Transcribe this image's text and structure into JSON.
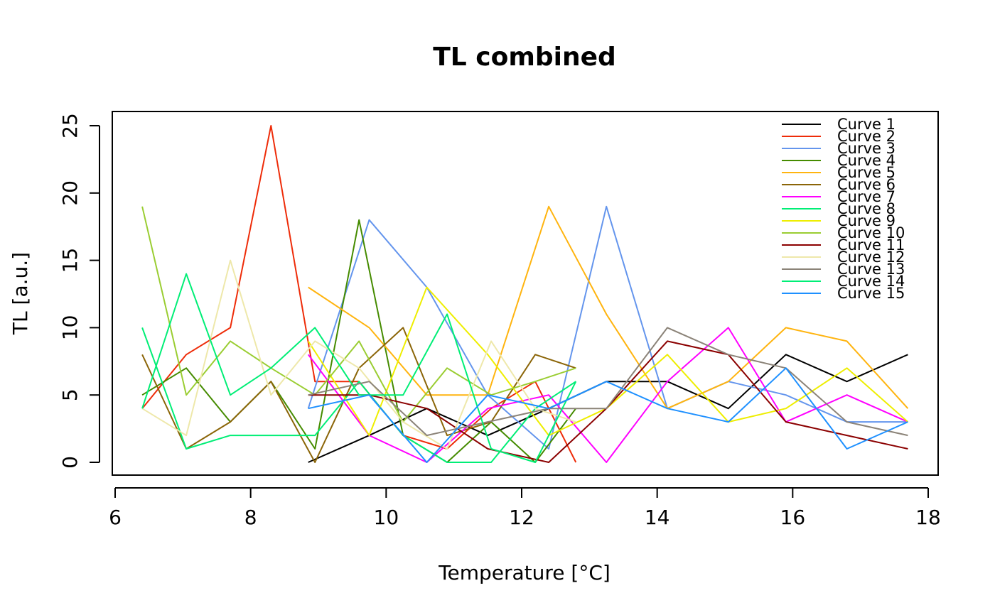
{
  "chart_data": {
    "type": "line",
    "title": "TL combined",
    "xlabel": "Temperature [°C]",
    "ylabel": "TL [a.u.]",
    "xlim": [
      6,
      18
    ],
    "ylim": [
      0,
      25
    ],
    "x_ticks": [
      6,
      8,
      10,
      12,
      14,
      16,
      18
    ],
    "y_ticks": [
      0,
      5,
      10,
      15,
      20,
      25
    ],
    "grid": false,
    "legend_position": "top-right",
    "series": [
      {
        "name": "Curve 1",
        "color": "#000000",
        "x": [
          8.85,
          9.75,
          10.6,
          11.5,
          12.4,
          13.25,
          14.15,
          15.05,
          15.9,
          16.8,
          17.7
        ],
        "y": [
          0,
          2,
          4,
          2,
          4,
          6,
          6,
          4,
          8,
          6,
          8
        ]
      },
      {
        "name": "Curve 2",
        "color": "#EE2C09",
        "x": [
          6.4,
          7.05,
          7.7,
          8.3,
          8.95,
          9.6,
          10.25,
          10.9,
          11.55,
          12.2,
          12.8
        ],
        "y": [
          4,
          8,
          10,
          25,
          6,
          6,
          2,
          1,
          4,
          6,
          0
        ]
      },
      {
        "name": "Curve 3",
        "color": "#6495ED",
        "x": [
          8.85,
          9.75,
          10.6,
          11.5,
          12.4,
          13.25,
          14.15,
          15.05,
          15.9,
          16.8,
          17.7
        ],
        "y": [
          4,
          18,
          13,
          5,
          1,
          19,
          4,
          6,
          5,
          3,
          3
        ]
      },
      {
        "name": "Curve 4",
        "color": "#458B00",
        "x": [
          6.4,
          7.05,
          7.7,
          8.3,
          8.95,
          9.6,
          10.25,
          10.9,
          11.55,
          12.2,
          12.8
        ],
        "y": [
          5,
          7,
          3,
          6,
          1,
          18,
          2,
          0,
          3,
          0,
          4
        ]
      },
      {
        "name": "Curve 5",
        "color": "#FFB40F",
        "x": [
          8.85,
          9.75,
          10.6,
          11.5,
          12.4,
          13.25,
          14.15,
          15.05,
          15.9,
          16.8,
          17.7
        ],
        "y": [
          13,
          10,
          5,
          5,
          19,
          11,
          4,
          6,
          10,
          9,
          4
        ]
      },
      {
        "name": "Curve 6",
        "color": "#8B6508",
        "x": [
          6.4,
          7.05,
          7.7,
          8.3,
          8.95,
          9.6,
          10.25,
          10.9,
          11.55,
          12.2,
          12.8
        ],
        "y": [
          8,
          1,
          3,
          6,
          0,
          7,
          10,
          2,
          3,
          8,
          7
        ]
      },
      {
        "name": "Curve 7",
        "color": "#FF00FF",
        "x": [
          8.85,
          9.75,
          10.6,
          11.5,
          12.4,
          13.25,
          14.15,
          15.05,
          15.9,
          16.8,
          17.7
        ],
        "y": [
          8,
          2,
          0,
          4,
          5,
          0,
          6,
          10,
          3,
          5,
          3
        ]
      },
      {
        "name": "Curve 8",
        "color": "#00EE76",
        "x": [
          6.4,
          7.05,
          7.7,
          8.3,
          8.95,
          9.6,
          10.25,
          10.9,
          11.55,
          12.2,
          12.8
        ],
        "y": [
          10,
          1,
          2,
          2,
          2,
          6,
          2,
          0,
          0,
          4,
          6
        ]
      },
      {
        "name": "Curve 9",
        "color": "#EEEE00",
        "x": [
          8.85,
          9.75,
          10.6,
          11.5,
          12.4,
          13.25,
          14.15,
          15.05,
          15.9,
          16.8,
          17.7
        ],
        "y": [
          9,
          2,
          13,
          8,
          2,
          4,
          8,
          3,
          4,
          7,
          3
        ]
      },
      {
        "name": "Curve 10",
        "color": "#9ACD32",
        "x": [
          6.4,
          7.05,
          7.7,
          8.3,
          8.95,
          9.6,
          10.25,
          10.9,
          11.55,
          12.2,
          12.8
        ],
        "y": [
          19,
          5,
          9,
          7,
          5,
          9,
          3,
          7,
          5,
          6,
          7
        ]
      },
      {
        "name": "Curve 11",
        "color": "#8B0000",
        "x": [
          8.85,
          9.75,
          10.6,
          11.5,
          12.4,
          13.25,
          14.15,
          15.05,
          15.9,
          16.8,
          17.7
        ],
        "y": [
          5,
          5,
          4,
          1,
          0,
          4,
          9,
          8,
          3,
          2,
          1
        ]
      },
      {
        "name": "Curve 12",
        "color": "#EEE8AA",
        "x": [
          6.4,
          7.05,
          7.7,
          8.3,
          8.95,
          9.6,
          10.25,
          10.9,
          11.55,
          12.2,
          12.8
        ],
        "y": [
          4,
          2,
          15,
          5,
          9,
          7,
          3,
          1,
          9,
          4,
          3
        ]
      },
      {
        "name": "Curve 13",
        "color": "#8B8378",
        "x": [
          8.85,
          9.75,
          10.6,
          11.5,
          12.4,
          13.25,
          14.15,
          15.05,
          15.9,
          16.8,
          17.7
        ],
        "y": [
          5,
          6,
          2,
          3,
          4,
          4,
          10,
          8,
          7,
          3,
          2
        ]
      },
      {
        "name": "Curve 14",
        "color": "#00EE76",
        "x": [
          6.4,
          7.05,
          7.7,
          8.3,
          8.95,
          9.6,
          10.25,
          10.9,
          11.55,
          12.2,
          12.8
        ],
        "y": [
          4,
          14,
          5,
          7,
          10,
          5,
          5,
          11,
          1,
          0,
          6
        ]
      },
      {
        "name": "Curve 15",
        "color": "#1E90FF",
        "x": [
          8.85,
          9.75,
          10.6,
          11.5,
          12.4,
          13.25,
          14.15,
          15.05,
          15.9,
          16.8,
          17.7
        ],
        "y": [
          4,
          5,
          0,
          5,
          4,
          6,
          4,
          3,
          7,
          1,
          3
        ]
      }
    ]
  }
}
